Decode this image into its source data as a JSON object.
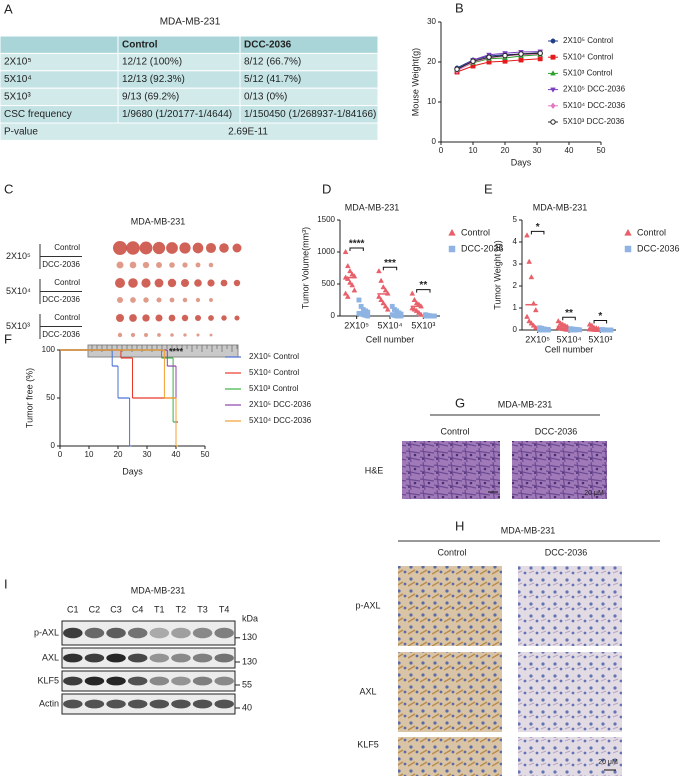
{
  "panel_labels": [
    "A",
    "B",
    "C",
    "D",
    "E",
    "F",
    "G",
    "H",
    "I"
  ],
  "table": {
    "title": "MDA-MB-231",
    "header": [
      "Control",
      "DCC-2036"
    ],
    "rows": [
      [
        "2X10⁵",
        "12/12 (100%)",
        "8/12 (66.7%)"
      ],
      [
        "5X10⁴",
        "12/13 (92.3%)",
        "5/12 (41.7%)"
      ],
      [
        "5X10³",
        "9/13 (69.2%)",
        "0/13 (0%)"
      ],
      [
        "CSC frequency",
        "1/9680 (1/20177-1/4644)",
        "1/150450 (1/268937-1/84166)"
      ]
    ],
    "p_value": [
      "P-value",
      "2.69E-11"
    ]
  },
  "chart_data": [
    {
      "type": "line",
      "ylabel": "Mouse Weight(g)",
      "xlabel": "Days",
      "x": [
        5,
        10,
        15,
        20,
        25,
        31
      ],
      "xlim": [
        0,
        50
      ],
      "xticks": [
        0,
        10,
        20,
        30,
        40,
        50
      ],
      "ylim": [
        0,
        30
      ],
      "yticks": [
        0,
        10,
        20,
        30
      ],
      "series": [
        {
          "name": "2X10⁵ Control",
          "color": "#1f3d8a",
          "marker": "circle",
          "values": [
            18.5,
            20.5,
            21.5,
            21.8,
            22,
            22.3
          ]
        },
        {
          "name": "5X10⁴ Control",
          "color": "#e41a1c",
          "marker": "square",
          "values": [
            17.5,
            19,
            20,
            20.2,
            20.5,
            20.8
          ]
        },
        {
          "name": "5X10³ Control",
          "color": "#2ca02c",
          "marker": "triangle",
          "values": [
            18,
            19.8,
            20.8,
            21,
            21.5,
            21.8
          ]
        },
        {
          "name": "2X10⁵ DCC-2036",
          "color": "#7b3fbf",
          "marker": "down-triangle",
          "values": [
            18,
            20.5,
            21.8,
            22.2,
            22.5,
            22.6
          ]
        },
        {
          "name": "5X10⁴ DCC-2036",
          "color": "#e377c2",
          "marker": "diamond",
          "values": [
            17.8,
            20,
            21,
            21.5,
            21.8,
            22
          ]
        },
        {
          "name": "5X10³ DCC-2036",
          "color": "#222222",
          "marker": "open-circle",
          "values": [
            18.2,
            20.2,
            21.2,
            21.6,
            22,
            22.2
          ]
        }
      ]
    },
    {
      "type": "dot_column",
      "title": "MDA-MB-231",
      "ylabel": "Tumor Volume(mm³)",
      "xlabel": "Cell number",
      "categories": [
        "2X10⁵",
        "5X10⁴",
        "5X10³"
      ],
      "ylim": [
        0,
        1500
      ],
      "yticks": [
        0,
        500,
        1000,
        1500
      ],
      "significance": [
        "****",
        "***",
        "**"
      ],
      "series": [
        {
          "name": "Control",
          "color": "#e8606a",
          "marker": "triangle",
          "values": [
            600,
            345,
            150
          ],
          "points": [
            [
              1000,
              780,
              700,
              650,
              620,
              600,
              580,
              520,
              480,
              400,
              350,
              300
            ],
            [
              700,
              550,
              450,
              400,
              350,
              300,
              250,
              200,
              150,
              100
            ],
            [
              350,
              250,
              200,
              180,
              150,
              120,
              100,
              80,
              50,
              20
            ]
          ]
        },
        {
          "name": "DCC-2036",
          "color": "#8fb4e3",
          "marker": "square",
          "values": [
            60,
            40,
            5
          ],
          "points": [
            [
              250,
              150,
              100,
              80,
              60,
              40,
              30,
              20,
              10,
              0
            ],
            [
              150,
              100,
              80,
              50,
              30,
              20,
              10,
              0,
              0,
              0
            ],
            [
              20,
              10,
              5,
              0,
              0,
              0,
              0,
              0
            ]
          ]
        }
      ]
    },
    {
      "type": "dot_column",
      "title": "MDA-MB-231",
      "ylabel": "Tumor Weight (g)",
      "xlabel": "Cell number",
      "categories": [
        "2X10⁵",
        "5X10⁴",
        "5X10³"
      ],
      "ylim": [
        0,
        5
      ],
      "yticks": [
        0,
        1,
        2,
        3,
        4,
        5
      ],
      "significance": [
        "*",
        "**",
        "*"
      ],
      "series": [
        {
          "name": "Control",
          "color": "#e8606a",
          "marker": "triangle",
          "values": [
            1.15,
            0.16,
            0.07
          ],
          "points": [
            [
              4.3,
              3.1,
              2.4,
              1.2,
              0.9,
              0.6,
              0.4,
              0.3,
              0.2,
              0.1
            ],
            [
              0.4,
              0.3,
              0.25,
              0.2,
              0.15,
              0.1,
              0.08,
              0.05,
              0.03,
              0.01
            ],
            [
              0.25,
              0.2,
              0.1,
              0.08,
              0.05,
              0.03,
              0.02,
              0.01,
              0,
              0
            ]
          ]
        },
        {
          "name": "DCC-2036",
          "color": "#8fb4e3",
          "marker": "square",
          "values": [
            0.03,
            0.02,
            0.005
          ],
          "points": [
            [
              0.1,
              0.08,
              0.05,
              0.03,
              0.02,
              0.01,
              0,
              0,
              0,
              0
            ],
            [
              0.06,
              0.04,
              0.03,
              0.02,
              0.01,
              0,
              0,
              0
            ],
            [
              0.02,
              0.01,
              0,
              0,
              0,
              0
            ]
          ]
        }
      ]
    },
    {
      "type": "step",
      "ylabel": "Tumor free (%)",
      "xlabel": "Days",
      "annotation": "****",
      "xlim": [
        0,
        50
      ],
      "xticks": [
        0,
        10,
        20,
        30,
        40,
        50
      ],
      "ylim": [
        0,
        100
      ],
      "yticks": [
        0,
        50,
        100
      ],
      "series": [
        {
          "name": "2X10⁵ Control",
          "color": "#4a6fd6",
          "x": [
            0,
            18,
            20,
            24
          ],
          "values": [
            100,
            83.3,
            50,
            0
          ]
        },
        {
          "name": "5X10⁴ Control",
          "color": "#e8392b",
          "x": [
            0,
            21,
            25,
            40
          ],
          "values": [
            100,
            91.7,
            50,
            0
          ]
        },
        {
          "name": "5X10³ Control",
          "color": "#3cb043",
          "x": [
            0,
            35,
            39,
            40
          ],
          "values": [
            100,
            91.7,
            25,
            0
          ]
        },
        {
          "name": "2X10⁵ DCC-2036",
          "color": "#8e44ad",
          "x": [
            0,
            37,
            40
          ],
          "values": [
            100,
            83.3,
            25
          ]
        },
        {
          "name": "5X10⁴ DCC-2036",
          "color": "#f0a030",
          "x": [
            0,
            36,
            40
          ],
          "values": [
            100,
            50,
            0
          ]
        }
      ]
    }
  ],
  "tumor_photo": {
    "title": "MDA-MB-231",
    "groups": [
      {
        "dose": "2X10⁵",
        "arms": [
          "Control",
          "DCC-2036"
        ]
      },
      {
        "dose": "5X10⁴",
        "arms": [
          "Control",
          "DCC-2036"
        ]
      },
      {
        "dose": "5X10³",
        "arms": [
          "Control",
          "DCC-2036"
        ]
      }
    ]
  },
  "he_stain": {
    "title": "MDA-MB-231",
    "columns": [
      "Control",
      "DCC-2036"
    ],
    "row": "H&E",
    "scale": "20 μM"
  },
  "ihc": {
    "title": "MDA-MB-231",
    "columns": [
      "Control",
      "DCC-2036"
    ],
    "rows": [
      "p-AXL",
      "AXL",
      "KLF5"
    ],
    "scale": "20 μM"
  },
  "western": {
    "title": "MDA-MB-231",
    "lanes": [
      "C1",
      "C2",
      "C3",
      "C4",
      "T1",
      "T2",
      "T3",
      "T4"
    ],
    "unit": "kDa",
    "rows": [
      {
        "name": "p-AXL",
        "kda": "130"
      },
      {
        "name": "AXL",
        "kda": "130"
      },
      {
        "name": "KLF5",
        "kda": "55"
      },
      {
        "name": "Actin",
        "kda": "40"
      }
    ]
  }
}
